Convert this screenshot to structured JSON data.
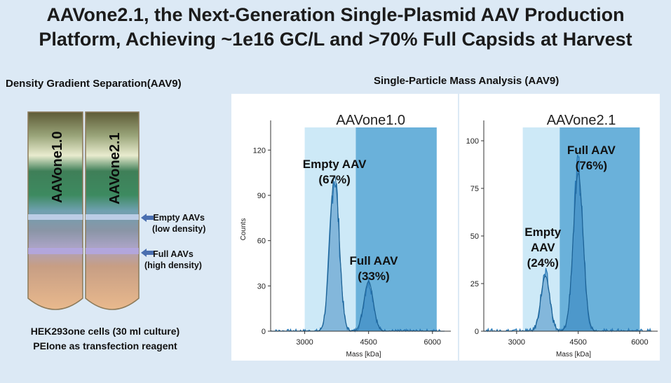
{
  "title_line1": "AAVone2.1, the Next-Generation Single-Plasmid AAV Production",
  "title_line2": "Platform, Achieving ~1e16 GC/L and >70% Full Capsids at Harvest",
  "left": {
    "heading": "Density Gradient Separation(AAV9)",
    "tube1": "AAVone1.0",
    "tube2": "AAVone2.1",
    "empty_label_1": "Empty AAVs",
    "empty_label_2": "(low density)",
    "full_label_1": "Full AAVs",
    "full_label_2": "(high density)",
    "caption1": "HEK293one cells (30 ml culture)",
    "caption2": "PEIone as transfection reagent"
  },
  "right": {
    "heading": "Single-Particle Mass Analysis (AAV9)"
  },
  "colors": {
    "background": "#dce9f5",
    "light_band": "#cde9f7",
    "dark_band": "#5aa9d6",
    "histogram": "#2a7ab7",
    "fit": "#1d5f8f"
  },
  "chart_data": [
    {
      "type": "area",
      "title": "AAVone1.0",
      "xlabel": "Mass [kDa]",
      "ylabel": "Counts",
      "xlim": [
        2200,
        6300
      ],
      "ylim": [
        0,
        135
      ],
      "xticks": [
        3000,
        4500,
        6000
      ],
      "yticks": [
        0,
        30,
        60,
        90,
        120
      ],
      "grid": false,
      "bands": [
        {
          "name": "empty-region",
          "x": [
            3000,
            4200
          ]
        },
        {
          "name": "full-region",
          "x": [
            4200,
            6100
          ]
        }
      ],
      "peaks": [
        {
          "center": 3700,
          "height": 103,
          "width": 110
        },
        {
          "center": 4500,
          "height": 33,
          "width": 110
        }
      ],
      "annotations": [
        {
          "line1": "Empty AAV",
          "line2": "(67%)",
          "x": 3700,
          "y": 108
        },
        {
          "line1": "Full AAV",
          "line2": "(33%)",
          "x": 4620,
          "y": 44
        }
      ]
    },
    {
      "type": "area",
      "title": "AAVone2.1",
      "xlabel": "Mass [kDa]",
      "ylabel": "Counts",
      "xlim": [
        2200,
        6300
      ],
      "ylim": [
        0,
        107
      ],
      "xticks": [
        3000,
        4500,
        6000
      ],
      "yticks": [
        0,
        25,
        50,
        75,
        100
      ],
      "grid": false,
      "bands": [
        {
          "name": "empty-region",
          "x": [
            3150,
            4050
          ]
        },
        {
          "name": "full-region",
          "x": [
            4050,
            6000
          ]
        }
      ],
      "peaks": [
        {
          "center": 3700,
          "height": 29,
          "width": 110
        },
        {
          "center": 4500,
          "height": 83,
          "width": 120
        }
      ],
      "annotations": [
        {
          "line1": "Empty",
          "line2": "AAV",
          "line3": "(24%)",
          "x": 3640,
          "y": 50
        },
        {
          "line1": "Full AAV",
          "line2": "(76%)",
          "x": 4820,
          "y": 93
        }
      ]
    }
  ]
}
